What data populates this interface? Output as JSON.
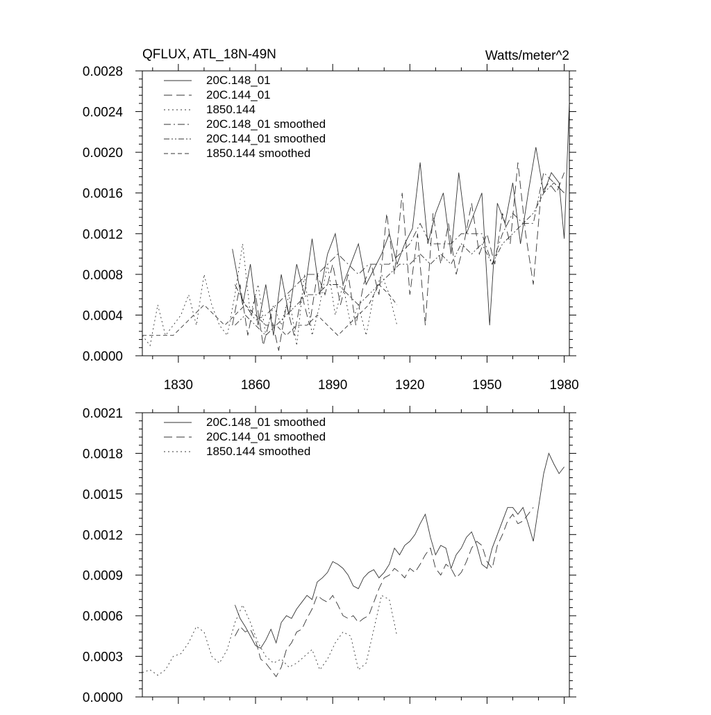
{
  "chart_data": [
    {
      "type": "line",
      "title": "QFLUX, ATL_18N-49N",
      "units": "Watts/meter^2",
      "xlim": [
        1816,
        1982
      ],
      "ylim": [
        0,
        0.0028
      ],
      "xticks": [
        1830,
        1860,
        1890,
        1920,
        1950,
        1980
      ],
      "xtick_labels": [
        "1830",
        "1860",
        "1890",
        "1920",
        "1950",
        "1980"
      ],
      "yticks": [
        0,
        0.0004,
        0.0008,
        0.0012,
        0.0016,
        0.002,
        0.0024,
        0.0028
      ],
      "ytick_labels": [
        "0.0000",
        "0.0004",
        "0.0008",
        "0.0012",
        "0.0016",
        "0.0020",
        "0.0024",
        "0.0028"
      ],
      "legend_position": "top-left",
      "series": [
        {
          "name": "20C.148_01",
          "dash": "solid",
          "x": [
            1851,
            1855,
            1858,
            1861,
            1864,
            1867,
            1870,
            1873,
            1876,
            1879,
            1882,
            1885,
            1888,
            1891,
            1894,
            1897,
            1900,
            1903,
            1906,
            1909,
            1912,
            1915,
            1918,
            1921,
            1924,
            1927,
            1930,
            1933,
            1936,
            1939,
            1942,
            1945,
            1948,
            1951,
            1954,
            1957,
            1960,
            1963,
            1966,
            1969,
            1972,
            1975,
            1978,
            1980,
            1982
          ],
          "y": [
            0.00105,
            0.0005,
            0.0009,
            0.0003,
            0.0007,
            0.0002,
            0.0008,
            0.0004,
            0.0009,
            0.0006,
            0.00115,
            0.0006,
            0.001,
            0.0012,
            0.0007,
            0.0009,
            0.0011,
            0.0007,
            0.00085,
            0.001,
            0.0012,
            0.0009,
            0.0011,
            0.00125,
            0.0019,
            0.0011,
            0.0014,
            0.0016,
            0.001,
            0.0018,
            0.0012,
            0.0014,
            0.0016,
            0.0003,
            0.0015,
            0.0013,
            0.0017,
            0.0011,
            0.0016,
            0.00205,
            0.0016,
            0.0018,
            0.0017,
            0.00115,
            0.0025
          ]
        },
        {
          "name": "20C.144_01",
          "dash": "longdash",
          "x": [
            1851,
            1854,
            1857,
            1860,
            1863,
            1866,
            1869,
            1872,
            1875,
            1878,
            1881,
            1884,
            1887,
            1890,
            1893,
            1896,
            1899,
            1902,
            1905,
            1908,
            1911,
            1914,
            1917,
            1920,
            1923,
            1926,
            1929,
            1932,
            1935,
            1938,
            1941,
            1944,
            1947,
            1950,
            1953,
            1956,
            1959,
            1962,
            1965,
            1968,
            1971,
            1974,
            1977,
            1980
          ],
          "y": [
            0.0003,
            0.0007,
            0.0002,
            0.0006,
            0.0001,
            0.0004,
            5e-05,
            0.0005,
            0.0002,
            0.0006,
            0.0003,
            0.0008,
            0.0006,
            0.0009,
            0.0005,
            0.0008,
            0.0003,
            0.0007,
            0.0009,
            0.0006,
            0.0014,
            0.0008,
            0.0016,
            0.0006,
            0.0012,
            0.0003,
            0.0014,
            0.0009,
            0.0013,
            0.0008,
            0.0011,
            0.0015,
            0.001,
            0.0012,
            0.0009,
            0.0014,
            0.0011,
            0.0019,
            0.0012,
            0.0007,
            0.0016,
            0.0017,
            0.0016,
            0.0018
          ]
        },
        {
          "name": "1850.144",
          "dash": "dot",
          "x": [
            1816,
            1819,
            1822,
            1825,
            1828,
            1831,
            1834,
            1837,
            1840,
            1843,
            1846,
            1849,
            1852,
            1855,
            1858,
            1861,
            1864,
            1867,
            1870,
            1873,
            1876,
            1879,
            1882,
            1885,
            1888,
            1891,
            1894,
            1897,
            1900,
            1903,
            1906,
            1909,
            1912,
            1915
          ],
          "y": [
            0.0002,
            0.0001,
            0.0005,
            0.0002,
            0.0003,
            0.0004,
            0.0006,
            0.0003,
            0.0008,
            0.0005,
            0.0003,
            0.0002,
            0.0006,
            0.0011,
            0.0004,
            0.0007,
            0.0002,
            0.0005,
            0.0003,
            0.0006,
            0.0001,
            0.0008,
            0.0002,
            0.0005,
            0.0009,
            0.0004,
            0.0007,
            0.0003,
            0.0005,
            0.0002,
            0.0006,
            0.0008,
            0.0006,
            0.0003
          ]
        },
        {
          "name": "20C.148_01 smoothed",
          "dash": "dashdot",
          "x": [
            1852,
            1856,
            1860,
            1864,
            1868,
            1872,
            1876,
            1880,
            1884,
            1888,
            1892,
            1896,
            1900,
            1904,
            1908,
            1912,
            1916,
            1920,
            1924,
            1928,
            1932,
            1936,
            1940,
            1944,
            1948,
            1952,
            1956,
            1960,
            1964,
            1968,
            1972,
            1976,
            1980
          ],
          "y": [
            0.0007,
            0.0005,
            0.00035,
            0.0004,
            0.0005,
            0.0006,
            0.0007,
            0.0008,
            0.0008,
            0.0009,
            0.001,
            0.0009,
            0.0008,
            0.0009,
            0.0009,
            0.0009,
            0.001,
            0.0011,
            0.0013,
            0.0011,
            0.0011,
            0.0011,
            0.0012,
            0.0012,
            0.0012,
            0.0009,
            0.0012,
            0.0014,
            0.0013,
            0.0013,
            0.0018,
            0.0017,
            0.0016
          ]
        },
        {
          "name": "20C.144_01 smoothed",
          "dash": "dashdotdot",
          "x": [
            1852,
            1856,
            1860,
            1864,
            1868,
            1872,
            1876,
            1880,
            1884,
            1888,
            1892,
            1896,
            1900,
            1904,
            1908,
            1912,
            1916,
            1920,
            1924,
            1928,
            1932,
            1936,
            1940,
            1944,
            1948,
            1952,
            1956,
            1960,
            1964,
            1968,
            1972,
            1976,
            1980
          ],
          "y": [
            0.0003,
            0.0004,
            0.0003,
            0.0002,
            0.0003,
            0.0004,
            0.0005,
            0.0006,
            0.0006,
            0.0007,
            0.0007,
            0.0006,
            0.0005,
            0.0006,
            0.0007,
            0.0008,
            0.0009,
            0.0009,
            0.001,
            0.0009,
            0.001,
            0.0009,
            0.0011,
            0.001,
            0.0011,
            0.0009,
            0.0011,
            0.0012,
            0.0013,
            0.0014,
            0.0016,
            0.0017,
            0.0016
          ]
        },
        {
          "name": "1850.144 smoothed",
          "dash": "shortdash",
          "x": [
            1816,
            1820,
            1824,
            1828,
            1832,
            1836,
            1840,
            1844,
            1848,
            1852,
            1856,
            1860,
            1864,
            1868,
            1872,
            1876,
            1880,
            1884,
            1888,
            1892,
            1896,
            1900,
            1904,
            1908,
            1912,
            1915
          ],
          "y": [
            0.0002,
            0.0002,
            0.0002,
            0.0002,
            0.0003,
            0.0004,
            0.0005,
            0.0004,
            0.0003,
            0.0004,
            0.0005,
            0.0004,
            0.0003,
            0.0003,
            0.0002,
            0.0003,
            0.0003,
            0.0004,
            0.0003,
            0.0002,
            0.0003,
            0.0004,
            0.0005,
            0.0007,
            0.0006,
            0.0005
          ]
        }
      ]
    },
    {
      "type": "line",
      "xlim": [
        1816,
        1982
      ],
      "ylim": [
        0,
        0.0021
      ],
      "xticks": [
        1830,
        1860,
        1890,
        1920,
        1950,
        1980
      ],
      "yticks": [
        0,
        0.0003,
        0.0006,
        0.0009,
        0.0012,
        0.0015,
        0.0018,
        0.0021
      ],
      "ytick_labels": [
        "0.0000",
        "0.0003",
        "0.0006",
        "0.0009",
        "0.0012",
        "0.0015",
        "0.0018",
        "0.0021"
      ],
      "legend_position": "top-left",
      "series": [
        {
          "name": "20C.148_01 smoothed",
          "dash": "solid",
          "x": [
            1852,
            1854,
            1856,
            1858,
            1860,
            1862,
            1864,
            1866,
            1868,
            1870,
            1872,
            1874,
            1876,
            1878,
            1880,
            1882,
            1884,
            1886,
            1888,
            1890,
            1892,
            1894,
            1896,
            1898,
            1900,
            1902,
            1904,
            1906,
            1908,
            1910,
            1912,
            1914,
            1916,
            1918,
            1920,
            1922,
            1924,
            1926,
            1928,
            1930,
            1932,
            1934,
            1936,
            1938,
            1940,
            1942,
            1944,
            1946,
            1948,
            1950,
            1952,
            1954,
            1956,
            1958,
            1960,
            1962,
            1964,
            1966,
            1968,
            1970,
            1972,
            1974,
            1976,
            1978,
            1980
          ],
          "y": [
            0.00068,
            0.00058,
            0.00052,
            0.00045,
            0.00038,
            0.00036,
            0.00042,
            0.0005,
            0.0004,
            0.00055,
            0.0006,
            0.00058,
            0.00065,
            0.0007,
            0.00075,
            0.00072,
            0.00085,
            0.00088,
            0.00092,
            0.001,
            0.00098,
            0.00095,
            0.0009,
            0.00082,
            0.0008,
            0.00088,
            0.00092,
            0.00094,
            0.00088,
            0.00092,
            0.00098,
            0.0011,
            0.00105,
            0.00112,
            0.00115,
            0.0012,
            0.00128,
            0.00135,
            0.00118,
            0.00105,
            0.00112,
            0.0011,
            0.00095,
            0.00105,
            0.0011,
            0.00118,
            0.00122,
            0.00112,
            0.00098,
            0.00095,
            0.0011,
            0.0012,
            0.0013,
            0.0014,
            0.0014,
            0.00135,
            0.0014,
            0.00128,
            0.00115,
            0.0014,
            0.00165,
            0.0018,
            0.00172,
            0.00165,
            0.0017
          ]
        },
        {
          "name": "20C.144_01 smoothed",
          "dash": "longdash",
          "x": [
            1852,
            1854,
            1856,
            1858,
            1860,
            1862,
            1864,
            1866,
            1868,
            1870,
            1872,
            1874,
            1876,
            1878,
            1880,
            1882,
            1884,
            1886,
            1888,
            1890,
            1892,
            1894,
            1896,
            1898,
            1900,
            1902,
            1904,
            1906,
            1908,
            1910,
            1912,
            1914,
            1916,
            1918,
            1920,
            1922,
            1924,
            1926,
            1928,
            1930,
            1932,
            1934,
            1936,
            1938,
            1940,
            1942,
            1944,
            1946,
            1948,
            1950,
            1952,
            1954,
            1956,
            1958,
            1960,
            1962,
            1964,
            1966,
            1968
          ],
          "y": [
            0.00045,
            0.00052,
            0.00048,
            0.0005,
            0.00042,
            0.00028,
            0.00025,
            0.0002,
            0.00015,
            0.00022,
            0.00035,
            0.0004,
            0.00048,
            0.0005,
            0.00058,
            0.00065,
            0.00075,
            0.00072,
            0.0007,
            0.00075,
            0.00068,
            0.0006,
            0.00058,
            0.0006,
            0.00055,
            0.00058,
            0.0006,
            0.0007,
            0.0008,
            0.00088,
            0.0009,
            0.00095,
            0.00092,
            0.00088,
            0.00095,
            0.00092,
            0.00098,
            0.00105,
            0.0011,
            0.00095,
            0.0009,
            0.00098,
            0.00095,
            0.00088,
            0.00092,
            0.001,
            0.0011,
            0.00115,
            0.00112,
            0.001,
            0.00095,
            0.00112,
            0.0012,
            0.0013,
            0.00135,
            0.00128,
            0.0013,
            0.00135,
            0.0014
          ]
        },
        {
          "name": "1850.144 smoothed",
          "dash": "dot",
          "x": [
            1816,
            1819,
            1822,
            1825,
            1828,
            1831,
            1834,
            1837,
            1840,
            1843,
            1846,
            1849,
            1852,
            1855,
            1858,
            1861,
            1864,
            1867,
            1870,
            1873,
            1876,
            1879,
            1882,
            1885,
            1888,
            1891,
            1894,
            1897,
            1900,
            1903,
            1906,
            1909,
            1912,
            1915
          ],
          "y": [
            0.00018,
            0.0002,
            0.00016,
            0.0002,
            0.0003,
            0.00032,
            0.0004,
            0.00052,
            0.00048,
            0.0003,
            0.00025,
            0.00035,
            0.00055,
            0.00068,
            0.00055,
            0.0004,
            0.0003,
            0.00025,
            0.00028,
            0.00022,
            0.00025,
            0.0003,
            0.00035,
            0.0002,
            0.00028,
            0.0004,
            0.00048,
            0.00045,
            0.0002,
            0.00025,
            0.0005,
            0.00075,
            0.00072,
            0.00045
          ]
        }
      ]
    }
  ]
}
